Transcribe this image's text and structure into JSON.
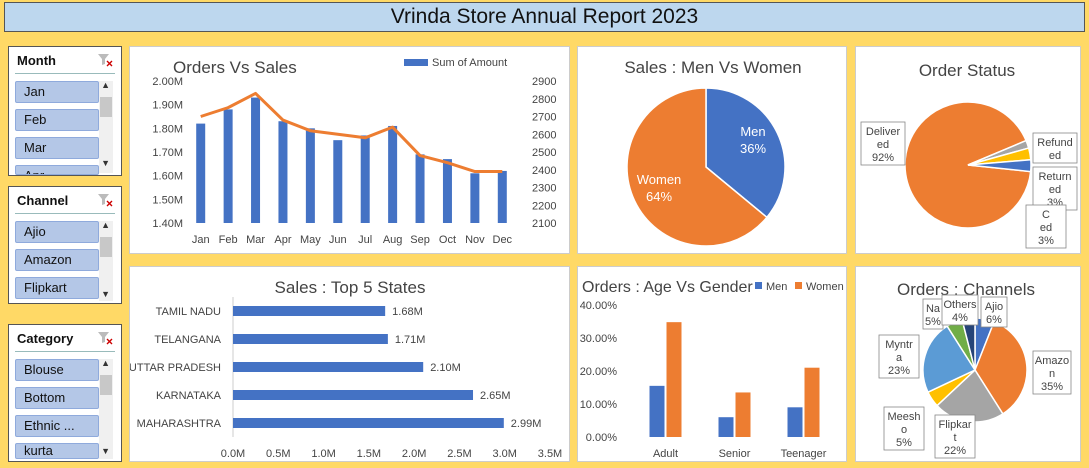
{
  "header": {
    "title": "Vrinda Store Annual Report 2023"
  },
  "slicers": [
    {
      "title": "Month",
      "items": [
        "Jan",
        "Feb",
        "Mar",
        "Apr"
      ]
    },
    {
      "title": "Channel",
      "items": [
        "Ajio",
        "Amazon",
        "Flipkart"
      ]
    },
    {
      "title": "Category",
      "items": [
        "Blouse",
        "Bottom",
        "Ethnic ...",
        "kurta"
      ]
    }
  ],
  "colors": {
    "blue": "#4472c4",
    "orange": "#ed7d31",
    "gray": "#a5a5a5",
    "gold": "#ffc000",
    "lightblue": "#5b9bd5",
    "green": "#70ad47",
    "navy": "#264478"
  },
  "chart_data": [
    {
      "id": "orders_vs_sales",
      "type": "bar",
      "title": "Orders Vs Sales",
      "legend": "top-right",
      "categories": [
        "Jan",
        "Feb",
        "Mar",
        "Apr",
        "May",
        "Jun",
        "Jul",
        "Aug",
        "Sep",
        "Oct",
        "Nov",
        "Dec"
      ],
      "series": [
        {
          "name": "Sum of Amount",
          "type": "bar",
          "axis": "left",
          "values": [
            1820000,
            1880000,
            1930000,
            1830000,
            1800000,
            1750000,
            1770000,
            1810000,
            1690000,
            1670000,
            1610000,
            1620000
          ]
        },
        {
          "type": "line",
          "axis": "right",
          "values": [
            2700,
            2750,
            2830,
            2680,
            2620,
            2600,
            2580,
            2640,
            2480,
            2440,
            2390,
            2390
          ]
        }
      ],
      "y_left": {
        "min": 1400000,
        "max": 2000000,
        "ticks": [
          "1.40M",
          "1.50M",
          "1.60M",
          "1.70M",
          "1.80M",
          "1.90M",
          "2.00M"
        ]
      },
      "y_right": {
        "min": 2100,
        "max": 2900,
        "ticks": [
          "2100",
          "2200",
          "2300",
          "2400",
          "2500",
          "2600",
          "2700",
          "2800",
          "2900"
        ]
      }
    },
    {
      "id": "sales_men_women",
      "type": "pie",
      "title": "Sales : Men Vs Women",
      "slices": [
        {
          "label": "Men",
          "pct_label": "36%",
          "value": 36,
          "color": "#4472c4"
        },
        {
          "label": "Women",
          "pct_label": "64%",
          "value": 64,
          "color": "#ed7d31"
        }
      ]
    },
    {
      "id": "order_status",
      "type": "pie",
      "title": "Order Status",
      "slices": [
        {
          "label": "Delivered",
          "label_lines": [
            "Deliver",
            "ed"
          ],
          "pct_label": "92%",
          "value": 92,
          "color": "#ed7d31"
        },
        {
          "label": "Refunded",
          "label_lines": [
            "Refund",
            "ed"
          ],
          "pct_label": "",
          "value": 2,
          "color": "#a5a5a5"
        },
        {
          "label": "Returned",
          "label_lines": [
            "Return",
            "ed"
          ],
          "pct_label": "3%",
          "value": 3,
          "color": "#ffc000"
        },
        {
          "label": "Cancelled",
          "label_lines": [
            "C",
            "ed"
          ],
          "pct_label": "3%",
          "value": 3,
          "color": "#4472c4"
        }
      ]
    },
    {
      "id": "top5_states",
      "type": "bar",
      "orientation": "horizontal",
      "title": "Sales : Top 5 States",
      "categories": [
        "TAMIL NADU",
        "TELANGANA",
        "UTTAR PRADESH",
        "KARNATAKA",
        "MAHARASHTRA"
      ],
      "values": [
        1.68,
        1.71,
        2.1,
        2.65,
        2.99
      ],
      "value_labels": [
        "1.68M",
        "1.71M",
        "2.10M",
        "2.65M",
        "2.99M"
      ],
      "xlim": [
        0,
        3.5
      ],
      "x_ticks": [
        "0.0M",
        "0.5M",
        "1.0M",
        "1.5M",
        "2.0M",
        "2.5M",
        "3.0M",
        "3.5M"
      ]
    },
    {
      "id": "age_vs_gender",
      "type": "bar",
      "title": "Orders : Age Vs Gender",
      "legend": "top-right",
      "categories": [
        "Adult",
        "Senior",
        "Teenager"
      ],
      "series": [
        {
          "name": "Men",
          "values": [
            15.5,
            6.0,
            9.0
          ],
          "color": "#4472c4"
        },
        {
          "name": "Women",
          "values": [
            34.8,
            13.5,
            21.0
          ],
          "color": "#ed7d31"
        }
      ],
      "ylim": [
        0,
        40
      ],
      "y_ticks": [
        "0.00%",
        "10.00%",
        "20.00%",
        "30.00%",
        "40.00%"
      ]
    },
    {
      "id": "orders_channels",
      "type": "pie",
      "title": "Orders : Channels",
      "slices": [
        {
          "label": "Ajio",
          "label_lines": [
            "Ajio"
          ],
          "pct_label": "6%",
          "value": 6,
          "color": "#4472c4"
        },
        {
          "label": "Amazon",
          "label_lines": [
            "Amazo",
            "n"
          ],
          "pct_label": "35%",
          "value": 35,
          "color": "#ed7d31"
        },
        {
          "label": "Flipkart",
          "label_lines": [
            "Flipkar",
            "t"
          ],
          "pct_label": "22%",
          "value": 22,
          "color": "#a5a5a5"
        },
        {
          "label": "Meesho",
          "label_lines": [
            "Meesh",
            "o"
          ],
          "pct_label": "5%",
          "value": 5,
          "color": "#ffc000"
        },
        {
          "label": "Myntra",
          "label_lines": [
            "Myntr",
            "a"
          ],
          "pct_label": "23%",
          "value": 23,
          "color": "#5b9bd5"
        },
        {
          "label": "Nalli",
          "label_lines": [
            "Na"
          ],
          "pct_label": "5%",
          "value": 5,
          "color": "#70ad47"
        },
        {
          "label": "Others",
          "label_lines": [
            "Others"
          ],
          "pct_label": "4%",
          "value": 4,
          "color": "#264478"
        }
      ]
    }
  ]
}
